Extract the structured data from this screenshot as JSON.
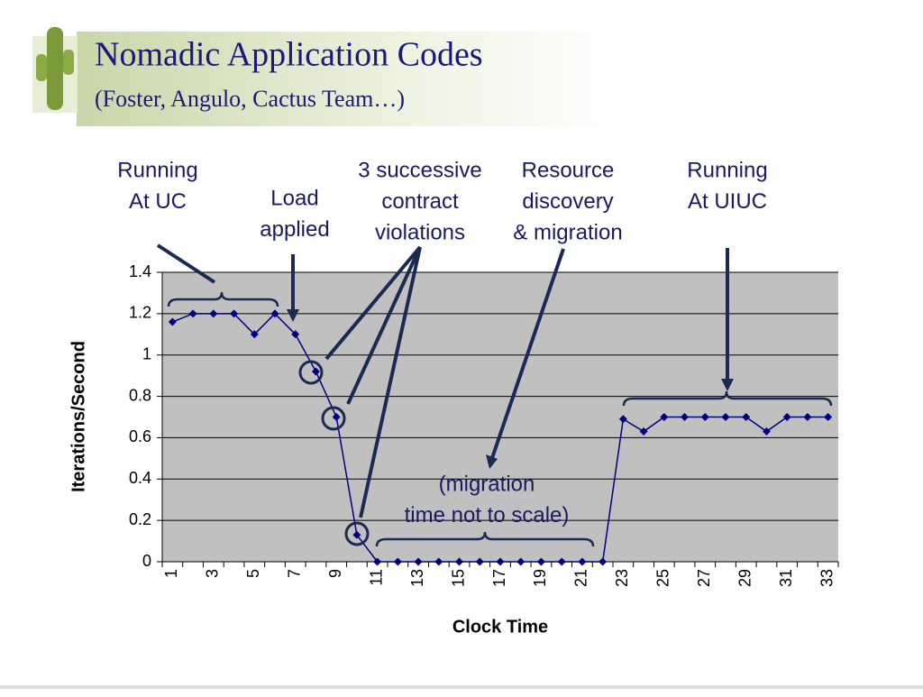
{
  "chart_data": {
    "type": "line",
    "title": "Nomadic Application Codes",
    "subtitle": "(Foster, Angulo, Cactus Team…)",
    "x_label": "Clock Time",
    "y_label": "Iterations/Second",
    "categories": [
      "1",
      null,
      "3",
      null,
      "5",
      null,
      "7",
      null,
      "9",
      null,
      "11",
      null,
      "13",
      null,
      "15",
      null,
      "17",
      null,
      "19",
      null,
      "21",
      null,
      "23",
      null,
      "25",
      null,
      "27",
      null,
      "29",
      null,
      "31",
      null,
      "33"
    ],
    "series": [
      {
        "name": "Iterations/Second",
        "color": "#000080",
        "values": [
          1.16,
          1.2,
          1.2,
          1.2,
          1.1,
          1.2,
          1.1,
          0.92,
          0.7,
          0.13,
          0,
          0,
          0,
          0,
          0,
          0,
          0,
          0,
          0,
          0,
          0,
          0,
          0.69,
          0.63,
          0.7,
          0.7,
          0.7,
          0.7,
          0.7,
          0.63,
          0.7,
          0.7,
          0.7
        ]
      }
    ],
    "ylim": [
      0,
      1.4
    ],
    "yticks": [
      0,
      0.2,
      0.4,
      0.6,
      0.8,
      1,
      1.2,
      1.4
    ],
    "grid": true,
    "annotations": [
      [
        "Running",
        "At UC"
      ],
      [
        "Load",
        "applied"
      ],
      [
        "3 successive",
        "contract",
        "violations"
      ],
      [
        "Resource",
        "discovery",
        "& migration"
      ],
      [
        "Running",
        "At UIUC"
      ],
      [
        "(migration",
        "time not to scale)"
      ]
    ]
  }
}
